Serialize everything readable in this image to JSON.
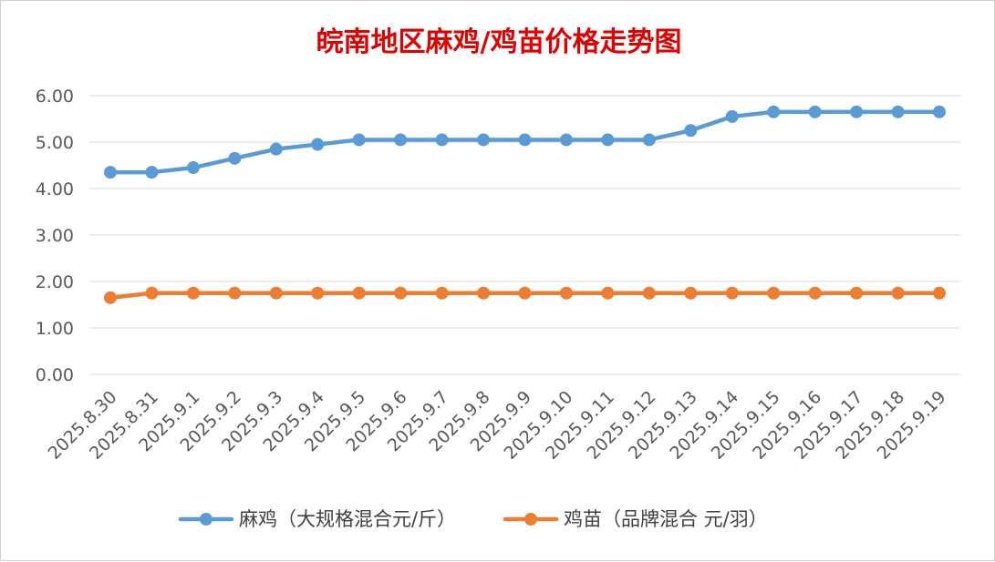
{
  "chart_data": {
    "type": "line",
    "title": "皖南地区麻鸡/鸡苗价格走势图",
    "categories": [
      "2025.8.30",
      "2025.8.31",
      "2025.9.1",
      "2025.9.2",
      "2025.9.3",
      "2025.9.4",
      "2025.9.5",
      "2025.9.6",
      "2025.9.7",
      "2025.9.8",
      "2025.9.9",
      "2025.9.10",
      "2025.9.11",
      "2025.9.12",
      "2025.9.13",
      "2025.9.14",
      "2025.9.15",
      "2025.9.16",
      "2025.9.17",
      "2025.9.18",
      "2025.9.19"
    ],
    "y_ticks": [
      "0.00",
      "1.00",
      "2.00",
      "3.00",
      "4.00",
      "5.00",
      "6.00"
    ],
    "ylim": [
      0,
      6
    ],
    "grid": true,
    "legend_position": "bottom",
    "series": [
      {
        "name": "麻鸡（大规格混合元/斤）",
        "color": "#5b9bd5",
        "values": [
          4.35,
          4.35,
          4.45,
          4.65,
          4.85,
          4.95,
          5.05,
          5.05,
          5.05,
          5.05,
          5.05,
          5.05,
          5.05,
          5.05,
          5.25,
          5.55,
          5.65,
          5.65,
          5.65,
          5.65,
          5.65
        ]
      },
      {
        "name": "鸡苗（品牌混合 元/羽）",
        "color": "#ed7d31",
        "values": [
          1.65,
          1.75,
          1.75,
          1.75,
          1.75,
          1.75,
          1.75,
          1.75,
          1.75,
          1.75,
          1.75,
          1.75,
          1.75,
          1.75,
          1.75,
          1.75,
          1.75,
          1.75,
          1.75,
          1.75,
          1.75
        ]
      }
    ]
  }
}
